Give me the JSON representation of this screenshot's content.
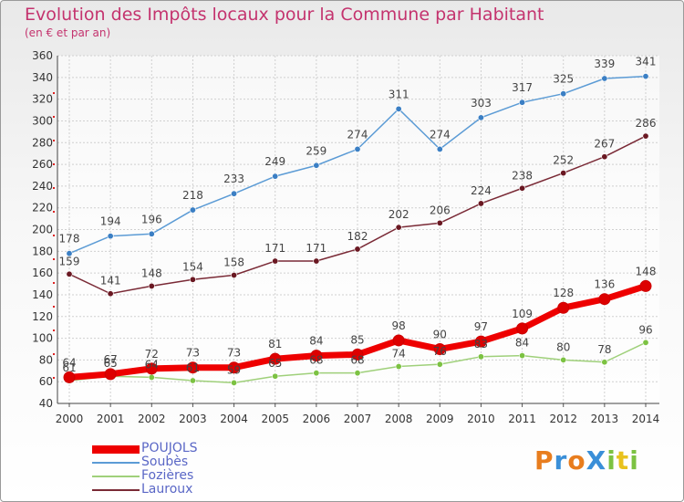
{
  "header": {
    "title": "Evolution des Impôts locaux pour la Commune par Habitant",
    "subtitle": "(en € et par an)"
  },
  "logo": {
    "text": "ProXiti",
    "letters": [
      "P",
      "r",
      "o",
      "X",
      "i",
      "t",
      "i"
    ],
    "colors": [
      "#e87d1e",
      "#3a8fd8",
      "#e87d1e",
      "#3a8fd8",
      "#7cc242",
      "#e8c21e",
      "#7cc242"
    ]
  },
  "chart_data": {
    "type": "line",
    "x": [
      2000,
      2001,
      2002,
      2003,
      2004,
      2005,
      2006,
      2007,
      2008,
      2009,
      2010,
      2011,
      2012,
      2013,
      2014
    ],
    "ylim": [
      40,
      360
    ],
    "yticks": [
      40,
      60,
      80,
      100,
      120,
      140,
      160,
      180,
      200,
      220,
      240,
      260,
      280,
      300,
      320,
      340,
      360
    ],
    "grid": true,
    "legend_position": "bottom-left",
    "series": [
      {
        "name": "POUJOLS",
        "color": "#ee0000",
        "marker": "#dd0000",
        "width": 7,
        "values": [
          64,
          67,
          72,
          73,
          73,
          81,
          84,
          85,
          98,
          90,
          97,
          109,
          128,
          136,
          148
        ],
        "labels": [
          "64",
          "67",
          "72",
          "73",
          "73",
          "81",
          "84",
          "85",
          "98",
          "90",
          "97",
          "109",
          "128",
          "136",
          "148"
        ]
      },
      {
        "name": "Soubès",
        "color": "#5b9bd5",
        "marker": "#3b7fc4",
        "width": 1.5,
        "values": [
          178,
          194,
          196,
          218,
          233,
          249,
          259,
          274,
          311,
          274,
          303,
          317,
          325,
          339,
          341
        ],
        "labels": [
          "178",
          "194",
          "196",
          "218",
          "233",
          "249",
          "259",
          "274",
          "311",
          "274",
          "303",
          "317",
          "325",
          "339",
          "341"
        ]
      },
      {
        "name": "Fozières",
        "color": "#9fd07a",
        "marker": "#7cc242",
        "width": 1.5,
        "values": [
          61,
          65,
          64,
          61,
          59,
          65,
          68,
          68,
          74,
          76,
          83,
          84,
          80,
          78,
          96
        ],
        "labels": [
          "61",
          "65",
          "64",
          "61",
          "59",
          "65",
          "68",
          "68",
          "74",
          "76",
          "83",
          "84",
          "80",
          "78",
          "96"
        ]
      },
      {
        "name": "Lauroux",
        "color": "#7a2a36",
        "marker": "#6a1822",
        "width": 1.5,
        "values": [
          159,
          141,
          148,
          154,
          158,
          171,
          171,
          182,
          202,
          206,
          224,
          238,
          252,
          267,
          286
        ],
        "labels": [
          "159",
          "141",
          "148",
          "154",
          "158",
          "171",
          "171",
          "182",
          "202",
          "206",
          "224",
          "238",
          "252",
          "267",
          "286"
        ]
      }
    ]
  }
}
